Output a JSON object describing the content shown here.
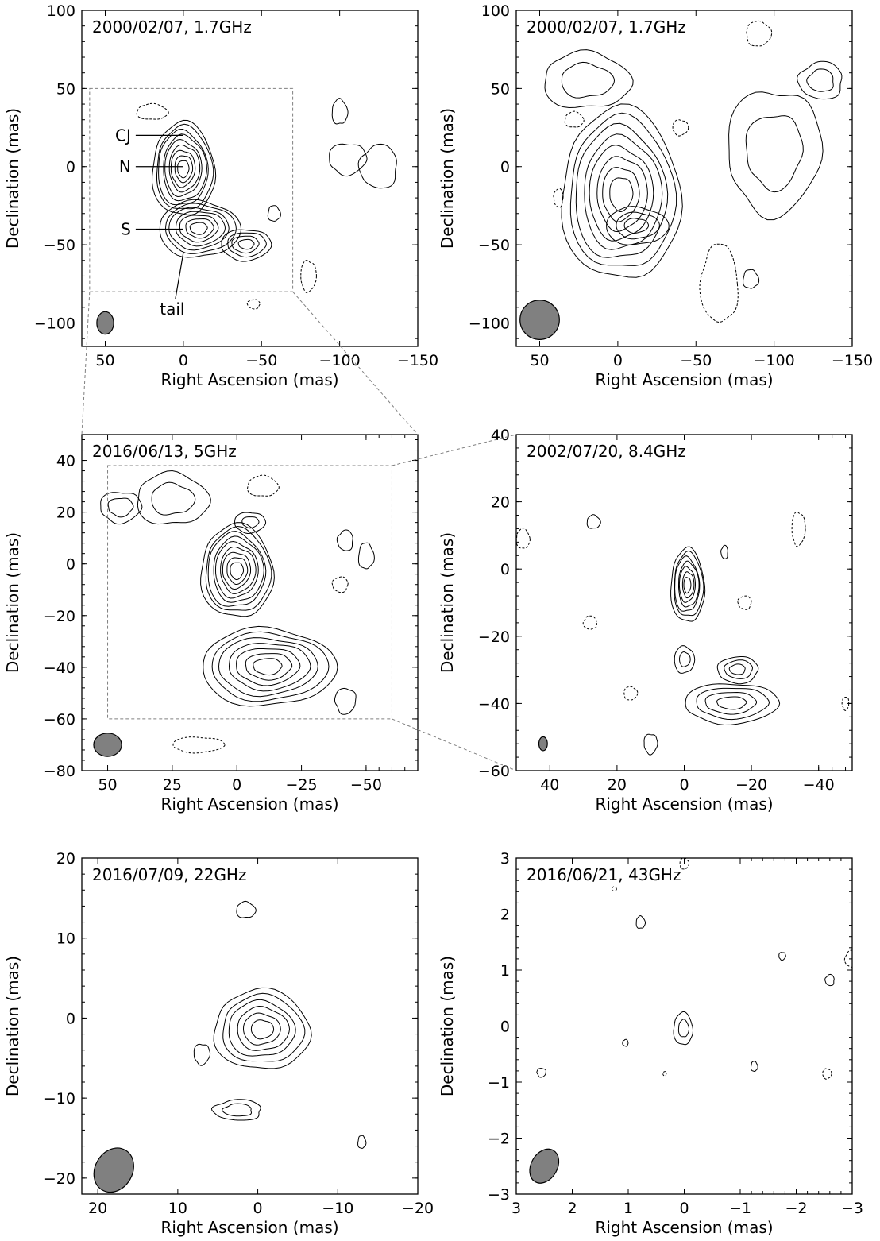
{
  "chart_data": [
    {
      "type": "contour",
      "title": "2000/02/07, 1.7GHz",
      "xlabel": "Right Ascension (mas)",
      "ylabel": "Declination (mas)",
      "xlim": [
        65,
        -150
      ],
      "ylim": [
        -115,
        100
      ],
      "xticks": [
        50,
        0,
        -50,
        -100,
        -150
      ],
      "yticks": [
        -100,
        -50,
        0,
        50,
        100
      ],
      "xticklabels": [
        "50",
        "0",
        "−50",
        "−100",
        "−150"
      ],
      "yticklabels": [
        "−100",
        "−50",
        "0",
        "50",
        "100"
      ],
      "zoom_box": {
        "x": [
          60,
          -70
        ],
        "y": [
          -80,
          50
        ]
      },
      "components": [
        {
          "label": "CJ",
          "x": 0,
          "y": 20
        },
        {
          "label": "N",
          "x": 0,
          "y": 0
        },
        {
          "label": "S",
          "x": 0,
          "y": -40
        },
        {
          "label": "tail",
          "x": 0,
          "y": -55
        }
      ],
      "beam": {
        "x": 50,
        "y": -100,
        "major": 8,
        "minor": 6,
        "pa": 0
      },
      "sources": [
        {
          "x": 0,
          "y": -2,
          "sx": 20,
          "sy": 30,
          "levels": 9
        },
        {
          "x": -10,
          "y": -40,
          "sx": 26,
          "sy": 18,
          "levels": 7
        },
        {
          "x": -40,
          "y": -50,
          "sx": 16,
          "sy": 10,
          "levels": 4
        }
      ],
      "negative": [
        {
          "x": 20,
          "y": 35,
          "sx": 10,
          "sy": 5
        },
        {
          "x": -80,
          "y": -70,
          "sx": 5,
          "sy": 10
        },
        {
          "x": -45,
          "y": -88,
          "sx": 4,
          "sy": 3
        }
      ],
      "islands": [
        {
          "x": -100,
          "y": 35,
          "sx": 5,
          "sy": 8
        },
        {
          "x": -105,
          "y": 5,
          "sx": 12,
          "sy": 10
        },
        {
          "x": -125,
          "y": 0,
          "sx": 12,
          "sy": 14
        },
        {
          "x": -58,
          "y": -30,
          "sx": 4,
          "sy": 5
        }
      ]
    },
    {
      "type": "contour",
      "title": "2000/02/07, 1.7GHz",
      "xlabel": "Right Ascension (mas)",
      "ylabel": "Declination (mas)",
      "xlim": [
        65,
        -150
      ],
      "ylim": [
        -115,
        100
      ],
      "xticks": [
        50,
        0,
        -50,
        -100,
        -150
      ],
      "yticks": [
        -100,
        -50,
        0,
        50,
        100
      ],
      "xticklabels": [
        "50",
        "0",
        "−50",
        "−100",
        "−150"
      ],
      "yticklabels": [
        "−100",
        "−50",
        "0",
        "50",
        "100"
      ],
      "beam": {
        "x": 50,
        "y": -98,
        "major": 14,
        "minor": 14,
        "pa": 0
      },
      "sources": [
        {
          "x": -2,
          "y": -18,
          "sx": 38,
          "sy": 55,
          "levels": 8
        },
        {
          "x": -12,
          "y": -38,
          "sx": 20,
          "sy": 12,
          "levels": 3
        }
      ],
      "negative": [
        {
          "x": 28,
          "y": 30,
          "sx": 6,
          "sy": 5
        },
        {
          "x": -40,
          "y": 25,
          "sx": 5,
          "sy": 5
        },
        {
          "x": 38,
          "y": -20,
          "sx": 3,
          "sy": 6
        },
        {
          "x": -65,
          "y": -75,
          "sx": 12,
          "sy": 25
        },
        {
          "x": -90,
          "y": 85,
          "sx": 8,
          "sy": 8
        }
      ],
      "islands": [
        {
          "x": 20,
          "y": 55,
          "sx": 28,
          "sy": 18
        },
        {
          "x": -100,
          "y": 10,
          "sx": 30,
          "sy": 40
        },
        {
          "x": -130,
          "y": 55,
          "sx": 14,
          "sy": 12
        },
        {
          "x": -85,
          "y": -72,
          "sx": 5,
          "sy": 6
        }
      ]
    },
    {
      "type": "contour",
      "title": "2016/06/13, 5GHz",
      "xlabel": "Right Ascension (mas)",
      "ylabel": "Declination (mas)",
      "xlim": [
        60,
        -70
      ],
      "ylim": [
        -80,
        50
      ],
      "xticks": [
        50,
        25,
        0,
        -25,
        -50
      ],
      "yticks": [
        -80,
        -60,
        -40,
        -20,
        0,
        20,
        40
      ],
      "xticklabels": [
        "50",
        "25",
        "0",
        "−25",
        "−50"
      ],
      "yticklabels": [
        "−80",
        "−60",
        "−40",
        "−20",
        "0",
        "20",
        "40"
      ],
      "zoom_box": {
        "x": [
          50,
          -60
        ],
        "y": [
          -60,
          38
        ]
      },
      "beam": {
        "x": 50,
        "y": -70,
        "major": 5,
        "minor": 6,
        "pa": 0
      },
      "sources": [
        {
          "x": 0,
          "y": -3,
          "sx": 14,
          "sy": 18,
          "levels": 9
        },
        {
          "x": -12,
          "y": -40,
          "sx": 26,
          "sy": 15,
          "levels": 7
        },
        {
          "x": -5,
          "y": 16,
          "sx": 6,
          "sy": 4,
          "levels": 2
        }
      ],
      "negative": [
        {
          "x": -10,
          "y": 30,
          "sx": 6,
          "sy": 4
        },
        {
          "x": 15,
          "y": -70,
          "sx": 10,
          "sy": 3
        },
        {
          "x": -40,
          "y": -8,
          "sx": 3,
          "sy": 3
        }
      ],
      "islands": [
        {
          "x": 25,
          "y": 25,
          "sx": 14,
          "sy": 10
        },
        {
          "x": 45,
          "y": 22,
          "sx": 8,
          "sy": 6
        },
        {
          "x": -42,
          "y": 9,
          "sx": 3,
          "sy": 4
        },
        {
          "x": -50,
          "y": 3,
          "sx": 3,
          "sy": 5
        },
        {
          "x": -42,
          "y": -53,
          "sx": 4,
          "sy": 5
        }
      ]
    },
    {
      "type": "contour",
      "title": "2002/07/20, 8.4GHz",
      "xlabel": "Right Ascension (mas)",
      "ylabel": "Declination (mas)",
      "xlim": [
        50,
        -50
      ],
      "ylim": [
        -60,
        40
      ],
      "xticks": [
        40,
        20,
        0,
        -20,
        -40
      ],
      "yticks": [
        -60,
        -40,
        -20,
        0,
        20,
        40
      ],
      "xticklabels": [
        "40",
        "20",
        "0",
        "−20",
        "−40"
      ],
      "yticklabels": [
        "−60",
        "−40",
        "−20",
        "0",
        "20",
        "40"
      ],
      "beam": {
        "x": 42,
        "y": -52,
        "major": 2.3,
        "minor": 1.4,
        "pa": 0
      },
      "sources": [
        {
          "x": -1,
          "y": -5,
          "sx": 5,
          "sy": 11,
          "levels": 7
        },
        {
          "x": 0,
          "y": -27,
          "sx": 3,
          "sy": 4,
          "levels": 2
        },
        {
          "x": -14,
          "y": -40,
          "sx": 14,
          "sy": 6,
          "levels": 4
        },
        {
          "x": -16,
          "y": -30,
          "sx": 6,
          "sy": 4,
          "levels": 3
        }
      ],
      "negative": [
        {
          "x": 48,
          "y": 9,
          "sx": 2,
          "sy": 3
        },
        {
          "x": -34,
          "y": 12,
          "sx": 2,
          "sy": 5
        },
        {
          "x": -18,
          "y": -10,
          "sx": 2,
          "sy": 2
        },
        {
          "x": 28,
          "y": -16,
          "sx": 2,
          "sy": 2
        },
        {
          "x": 16,
          "y": -37,
          "sx": 2,
          "sy": 2
        },
        {
          "x": -48,
          "y": -40,
          "sx": 1,
          "sy": 2
        }
      ],
      "islands": [
        {
          "x": 27,
          "y": 14,
          "sx": 2,
          "sy": 2
        },
        {
          "x": 10,
          "y": -52,
          "sx": 2,
          "sy": 3
        },
        {
          "x": -12,
          "y": 5,
          "sx": 1,
          "sy": 2
        }
      ]
    },
    {
      "type": "contour",
      "title": "2016/07/09, 22GHz",
      "xlabel": "Right Ascension (mas)",
      "ylabel": "Declination (mas)",
      "xlim": [
        22,
        -20
      ],
      "ylim": [
        -22,
        20
      ],
      "xticks": [
        20,
        10,
        0,
        -10,
        -20
      ],
      "yticks": [
        -20,
        -10,
        0,
        10,
        20
      ],
      "xticklabels": [
        "20",
        "10",
        "0",
        "−10",
        "−20"
      ],
      "yticklabels": [
        "−20",
        "−10",
        "0",
        "10",
        "20"
      ],
      "beam": {
        "x": 18,
        "y": -19,
        "major": 3.2,
        "minor": 2.6,
        "pa": 30
      },
      "sources": [
        {
          "x": -0.5,
          "y": -1.5,
          "sx": 6,
          "sy": 5,
          "levels": 6
        }
      ],
      "negative": [],
      "islands": [
        {
          "x": 1.5,
          "y": 13.5,
          "sx": 1.2,
          "sy": 1
        },
        {
          "x": 7,
          "y": -4.5,
          "sx": 1,
          "sy": 1.3
        },
        {
          "x": 2.5,
          "y": -11.5,
          "sx": 3,
          "sy": 1.3
        },
        {
          "x": -13,
          "y": -15.5,
          "sx": 0.5,
          "sy": 0.8
        }
      ]
    },
    {
      "type": "contour",
      "title": "2016/06/21, 43GHz",
      "xlabel": "Right Ascension (mas)",
      "ylabel": "Declination (mas)",
      "xlim": [
        3,
        -3
      ],
      "ylim": [
        -3,
        3
      ],
      "xticks": [
        3,
        2,
        1,
        0,
        -1,
        -2,
        -3
      ],
      "yticks": [
        -3,
        -2,
        -1,
        0,
        1,
        2,
        3
      ],
      "xticklabels": [
        "3",
        "2",
        "1",
        "0",
        "−1",
        "−2",
        "−3"
      ],
      "yticklabels": [
        "−3",
        "−2",
        "−1",
        "0",
        "1",
        "2",
        "3"
      ],
      "beam": {
        "x": 2.5,
        "y": -2.5,
        "major": 0.36,
        "minor": 0.26,
        "pa": 30
      },
      "sources": [
        {
          "x": 0.02,
          "y": -0.05,
          "sx": 0.17,
          "sy": 0.29,
          "levels": 2
        }
      ],
      "negative": [
        {
          "x": 1.25,
          "y": 2.45,
          "sx": 0.04,
          "sy": 0.04
        },
        {
          "x": -2.55,
          "y": -0.85,
          "sx": 0.08,
          "sy": 0.09
        },
        {
          "x": 0.35,
          "y": -0.85,
          "sx": 0.03,
          "sy": 0.04
        },
        {
          "x": -3,
          "y": 1.2,
          "sx": 0.13,
          "sy": 0.15
        },
        {
          "x": 0,
          "y": 2.9,
          "sx": 0.08,
          "sy": 0.1
        }
      ],
      "islands": [
        {
          "x": 0.78,
          "y": 1.85,
          "sx": 0.08,
          "sy": 0.11
        },
        {
          "x": -1.75,
          "y": 1.25,
          "sx": 0.06,
          "sy": 0.07
        },
        {
          "x": -2.6,
          "y": 0.82,
          "sx": 0.08,
          "sy": 0.1
        },
        {
          "x": -1.25,
          "y": -0.72,
          "sx": 0.06,
          "sy": 0.09
        },
        {
          "x": 2.55,
          "y": -0.83,
          "sx": 0.08,
          "sy": 0.08
        },
        {
          "x": 1.05,
          "y": -0.3,
          "sx": 0.05,
          "sy": 0.06
        }
      ]
    }
  ]
}
